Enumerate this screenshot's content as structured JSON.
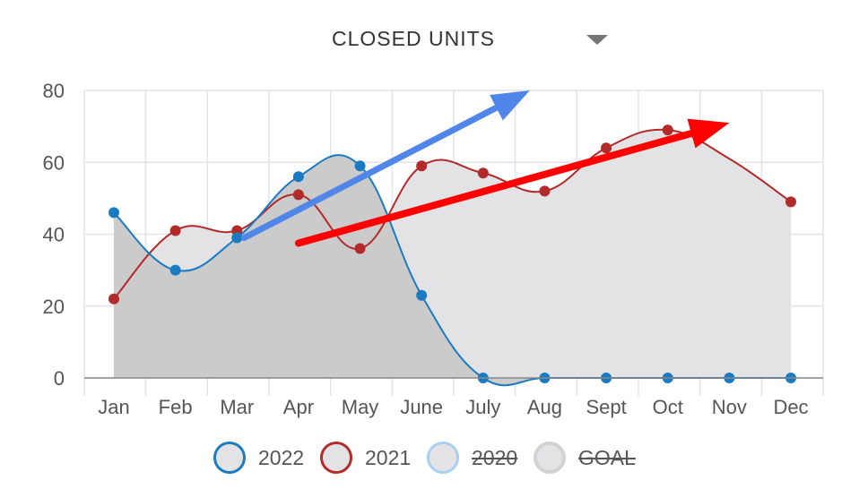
{
  "title": "CLOSED UNITS",
  "dropdown_icon": "caret-down-icon",
  "chart_data": {
    "type": "area",
    "categories": [
      "Jan",
      "Feb",
      "Mar",
      "Apr",
      "May",
      "June",
      "July",
      "Aug",
      "Sept",
      "Oct",
      "Nov",
      "Dec"
    ],
    "ylim": [
      0,
      80
    ],
    "yticks": [
      "0",
      "20",
      "40",
      "60",
      "80"
    ],
    "grid": true,
    "legend_position": "bottom",
    "series": [
      {
        "name": "2022",
        "color": "#1a7bc2",
        "fill": "#cbcbcb",
        "values": [
          46,
          30,
          39,
          56,
          59,
          23,
          0,
          0,
          0,
          0,
          0,
          0
        ]
      },
      {
        "name": "2021",
        "color": "#b22a2a",
        "fill": "#e3e3e5",
        "values": [
          22,
          41,
          41,
          51,
          36,
          59,
          57,
          52,
          64,
          69,
          null,
          49
        ]
      }
    ],
    "annotations": [
      {
        "type": "arrow",
        "color": "#4f86e8",
        "from": [
          "Mar",
          39
        ],
        "to": [
          "July",
          80
        ]
      },
      {
        "type": "arrow",
        "color": "#ff0000",
        "from": [
          "Apr",
          37.5
        ],
        "to": [
          "Nov",
          71
        ]
      }
    ]
  },
  "legend": [
    {
      "label": "2022",
      "hidden": false,
      "border": "#1a7bc2",
      "fill": "#e3e3e5"
    },
    {
      "label": "2021",
      "hidden": false,
      "border": "#b22a2a",
      "fill": "#e3e3e5"
    },
    {
      "label": "2020",
      "hidden": true,
      "border": "#a9d0f0",
      "fill": "#e3e3e5"
    },
    {
      "label": "GOAL",
      "hidden": true,
      "border": "#d2d2d2",
      "fill": "#e3e3e5"
    }
  ]
}
